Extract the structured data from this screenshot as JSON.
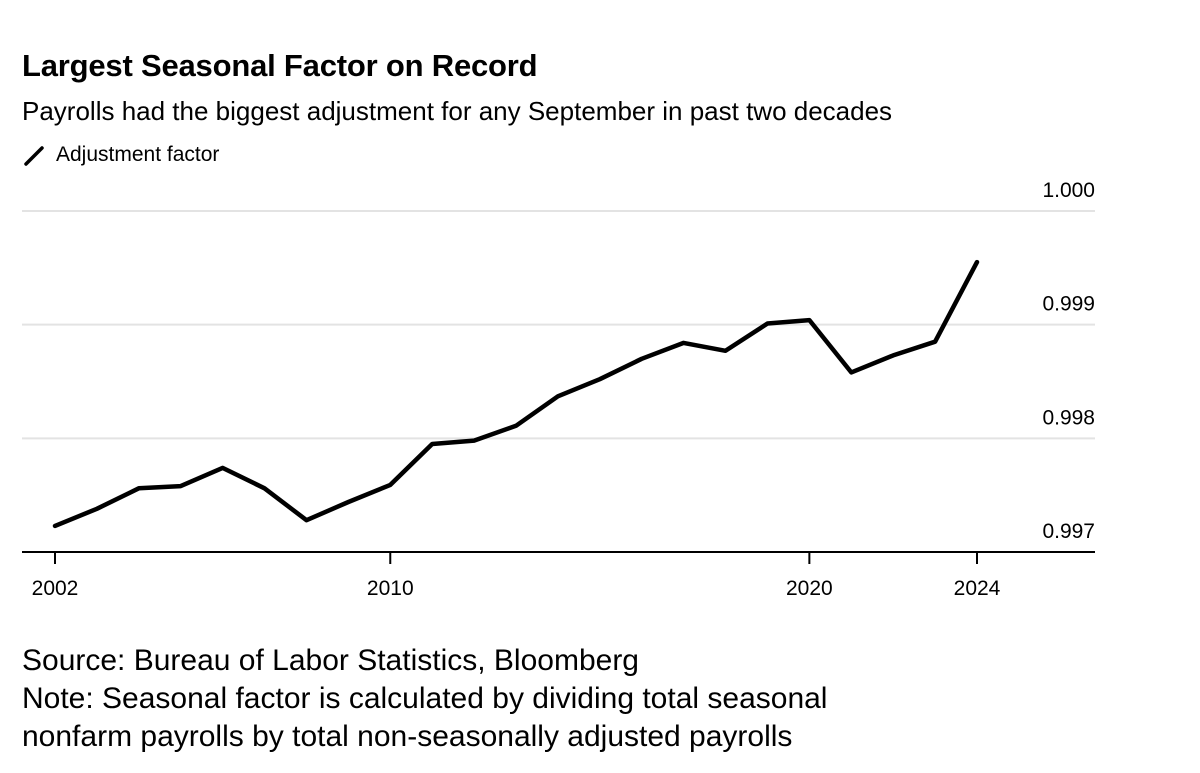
{
  "title": "Largest Seasonal Factor on Record",
  "subtitle": "Payrolls had the biggest adjustment for any September in past two decades",
  "legend": {
    "label": "Adjustment factor",
    "icon": "diagonal-line-icon"
  },
  "footer": {
    "source": "Source: Bureau of Labor Statistics, Bloomberg",
    "note_line1": "Note: Seasonal factor is calculated by dividing total seasonal",
    "note_line2": "nonfarm payrolls by total non-seasonally adjusted payrolls"
  },
  "colors": {
    "line": "#000000",
    "grid": "#e3e3e3",
    "axis": "#000000",
    "text": "#000000"
  },
  "chart_data": {
    "type": "line",
    "title": "Largest Seasonal Factor on Record",
    "subtitle": "Payrolls had the biggest adjustment for any September in past two decades",
    "series": [
      {
        "name": "Adjustment factor",
        "x": [
          2002,
          2003,
          2004,
          2005,
          2006,
          2007,
          2008,
          2009,
          2010,
          2011,
          2012,
          2013,
          2014,
          2015,
          2016,
          2017,
          2018,
          2019,
          2020,
          2021,
          2022,
          2023,
          2024
        ],
        "values": [
          0.99723,
          0.99738,
          0.99756,
          0.99758,
          0.99774,
          0.99756,
          0.99728,
          0.99744,
          0.99759,
          0.99795,
          0.99798,
          0.99811,
          0.99837,
          0.99852,
          0.9987,
          0.99884,
          0.99877,
          0.99901,
          0.99904,
          0.99858,
          0.99873,
          0.99885,
          0.99955
        ]
      }
    ],
    "x_ticks": [
      "2002",
      "2010",
      "2020",
      "2024"
    ],
    "y_ticks": [
      "0.997",
      "0.998",
      "0.999",
      "1.000"
    ],
    "xlabel": "",
    "ylabel": "",
    "xlim": [
      2002,
      2024
    ],
    "ylim": [
      0.997,
      1.0
    ],
    "y_axis_side": "right",
    "grid": "horizontal",
    "legend_position": "top-left"
  }
}
